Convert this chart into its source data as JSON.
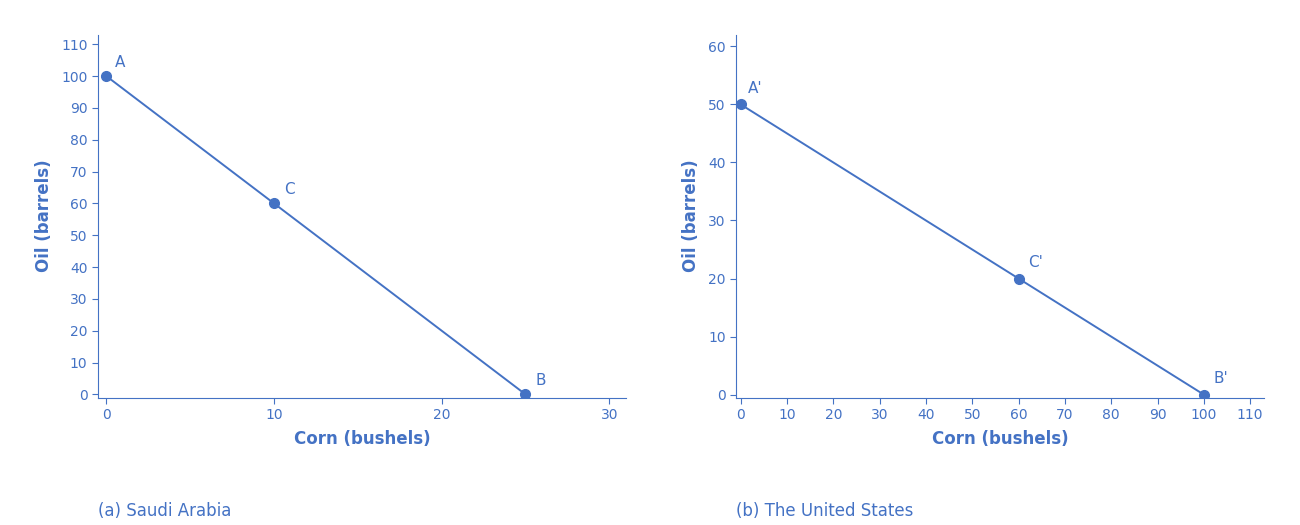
{
  "sa_points": {
    "A": [
      0,
      100
    ],
    "C": [
      10,
      60
    ],
    "B": [
      25,
      0
    ]
  },
  "us_points": {
    "A_prime": [
      0,
      50
    ],
    "C_prime": [
      60,
      20
    ],
    "B_prime": [
      100,
      0
    ]
  },
  "sa_xlim": [
    -0.5,
    31
  ],
  "sa_ylim": [
    -1,
    113
  ],
  "sa_xticks": [
    0,
    10,
    20,
    30
  ],
  "sa_yticks": [
    0,
    10,
    20,
    30,
    40,
    50,
    60,
    70,
    80,
    90,
    100,
    110
  ],
  "us_xlim": [
    -1,
    113
  ],
  "us_ylim": [
    -0.5,
    62
  ],
  "us_xticks": [
    0,
    10,
    20,
    30,
    40,
    50,
    60,
    70,
    80,
    90,
    100,
    110
  ],
  "us_yticks": [
    0,
    10,
    20,
    30,
    40,
    50,
    60
  ],
  "xlabel": "Corn (bushels)",
  "ylabel": "Oil (barrels)",
  "line_color": "#4472C4",
  "dot_color": "#4472C4",
  "label_color": "#4472C4",
  "caption_a": "(a) Saudi Arabia",
  "caption_b": "(b) The United States",
  "sa_point_labels": {
    "A": [
      0,
      100
    ],
    "C": [
      10,
      60
    ],
    "B": [
      25,
      0
    ]
  },
  "us_point_labels": {
    "A'": [
      0,
      50
    ],
    "C'": [
      60,
      20
    ],
    "B'": [
      100,
      0
    ]
  },
  "sa_label_offsets": {
    "A": [
      0.5,
      2
    ],
    "C": [
      0.6,
      2
    ],
    "B": [
      0.6,
      2
    ]
  },
  "us_label_offsets": {
    "A'": [
      1.5,
      1.5
    ],
    "C'": [
      2.0,
      1.5
    ],
    "B'": [
      2.0,
      1.5
    ]
  },
  "dot_size": 7,
  "line_width": 1.4,
  "label_fontsize": 11,
  "caption_fontsize": 12,
  "tick_fontsize": 10,
  "axis_label_fontsize": 12
}
